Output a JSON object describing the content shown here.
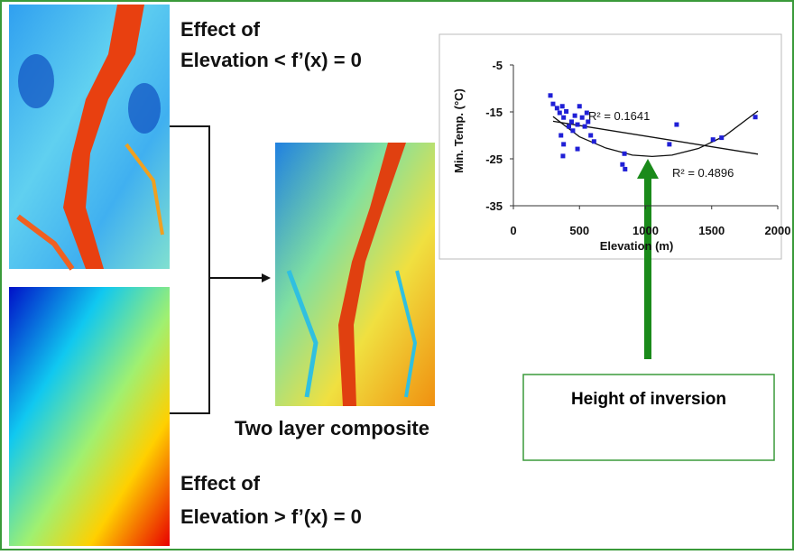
{
  "labels": {
    "effect_top": [
      "Effect of",
      "Elevation < f’(x) = 0"
    ],
    "composite": "Two layer composite",
    "effect_bottom": [
      "Effect of",
      "Elevation > f’(x) = 0"
    ],
    "inversion": "Height of inversion"
  },
  "chart_data": {
    "type": "scatter",
    "xlabel": "Elevation (m)",
    "ylabel": "Min. Temp. (°C)",
    "color": "#1f1fd6",
    "x": [
      280,
      300,
      330,
      350,
      370,
      380,
      400,
      420,
      360,
      380,
      375,
      440,
      450,
      465,
      485,
      500,
      520,
      540,
      555,
      565,
      585,
      610,
      485,
      825,
      845,
      840,
      1180,
      1235,
      1510,
      1575,
      1830
    ],
    "y": [
      -11.5,
      -13.3,
      -14.2,
      -15.2,
      -13.8,
      -16.2,
      -14.9,
      -18.1,
      -20,
      -21.9,
      -24.4,
      -17.1,
      -19,
      -15.8,
      -17.7,
      -13.8,
      -16.2,
      -18.1,
      -15.2,
      -17.1,
      -20,
      -21.3,
      -22.9,
      -26.2,
      -27.2,
      -23.9,
      -21.9,
      -17.7,
      -20.9,
      -20.5,
      -16.1
    ],
    "fits": [
      {
        "label": "R² = 0.1641",
        "x": [
          300,
          1850
        ],
        "y": [
          -17,
          -24
        ]
      },
      {
        "label": "R² = 0.4896",
        "x": [
          300,
          500,
          700,
          900,
          1050,
          1200,
          1400,
          1600,
          1850
        ],
        "y": [
          -16,
          -20.3,
          -22.7,
          -24.2,
          -24.5,
          -24.2,
          -22.8,
          -20.1,
          -14.8
        ]
      }
    ],
    "xlim": [
      0,
      2000
    ],
    "xticks": [
      0,
      500,
      1000,
      1500,
      2000
    ],
    "ylim": [
      -35,
      -5
    ],
    "yticks": [
      -5,
      -15,
      -25,
      -35
    ]
  }
}
